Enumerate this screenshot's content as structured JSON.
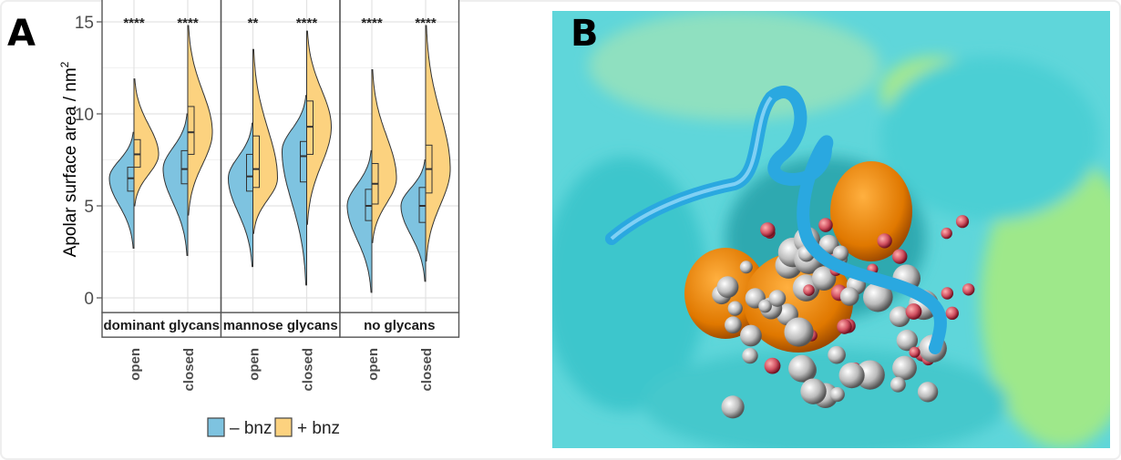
{
  "panels": {
    "a_label": "A",
    "b_label": "B"
  },
  "chart_data": {
    "type": "split-violin",
    "ylabel": "Apolar surface area / nm",
    "ylabel_superscript": "2",
    "ylim": [
      -0.8,
      15.8
    ],
    "yticks": [
      0,
      5,
      10,
      15
    ],
    "grid": true,
    "legend_position": "bottom",
    "legend": [
      {
        "name": "– bnz",
        "color": "#7ec3e0"
      },
      {
        "name": "+ bnz",
        "color": "#fcd27f"
      }
    ],
    "facets": [
      {
        "name": "dominant glycans",
        "groups": [
          {
            "category": "open",
            "significance": "****",
            "minus": {
              "min": 2.7,
              "q1": 5.8,
              "median": 6.5,
              "q3": 7.1,
              "max": 9.0,
              "mode": 6.5
            },
            "plus": {
              "min": 5.0,
              "q1": 7.1,
              "median": 7.8,
              "q3": 8.6,
              "max": 11.9,
              "mode": 7.8
            }
          },
          {
            "category": "closed",
            "significance": "****",
            "minus": {
              "min": 2.3,
              "q1": 6.2,
              "median": 7.0,
              "q3": 8.0,
              "max": 10.0,
              "mode": 7.0
            },
            "plus": {
              "min": 4.5,
              "q1": 7.8,
              "median": 9.0,
              "q3": 10.4,
              "max": 14.8,
              "mode": 9.0
            }
          }
        ]
      },
      {
        "name": "mannose glycans",
        "groups": [
          {
            "category": "open",
            "significance": "**",
            "minus": {
              "min": 1.7,
              "q1": 5.8,
              "median": 6.6,
              "q3": 7.8,
              "max": 9.5,
              "mode": 6.5
            },
            "plus": {
              "min": 3.5,
              "q1": 6.0,
              "median": 7.0,
              "q3": 8.8,
              "max": 13.5,
              "mode": 6.5
            }
          },
          {
            "category": "closed",
            "significance": "****",
            "minus": {
              "min": 0.7,
              "q1": 6.3,
              "median": 7.7,
              "q3": 8.5,
              "max": 11.0,
              "mode": 8.0
            },
            "plus": {
              "min": 4.0,
              "q1": 7.8,
              "median": 9.3,
              "q3": 10.7,
              "max": 14.5,
              "mode": 9.3
            }
          }
        ]
      },
      {
        "name": "no glycans",
        "groups": [
          {
            "category": "open",
            "significance": "****",
            "minus": {
              "min": 0.3,
              "q1": 4.2,
              "median": 5.0,
              "q3": 5.9,
              "max": 8.0,
              "mode": 5.0
            },
            "plus": {
              "min": 3.0,
              "q1": 5.1,
              "median": 6.2,
              "q3": 7.3,
              "max": 12.4,
              "mode": 6.5
            }
          },
          {
            "category": "closed",
            "significance": "****",
            "minus": {
              "min": 0.9,
              "q1": 4.1,
              "median": 5.0,
              "q3": 6.0,
              "max": 7.5,
              "mode": 5.0
            },
            "plus": {
              "min": 2.0,
              "q1": 5.7,
              "median": 7.0,
              "q3": 8.3,
              "max": 14.8,
              "mode": 7.0
            }
          }
        ]
      }
    ]
  }
}
